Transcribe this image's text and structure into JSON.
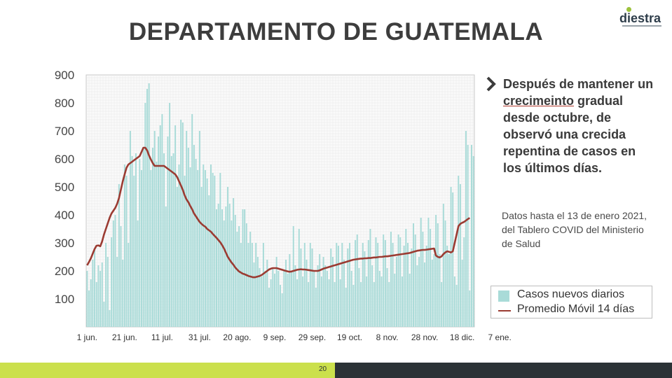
{
  "title": "DEPARTAMENTO DE GUATEMALA",
  "logo": {
    "text": "diestra"
  },
  "bullet": {
    "pre": "Después de mantener un ",
    "underlined": "crecimeinto",
    "post": " gradual desde octubre, de observó una crecida repentina de casos en los últimos días."
  },
  "note": "Datos hasta el 13 de enero 2021, del Tablero COVID del Ministerio de Salud",
  "legend": {
    "bars": "Casos nuevos diarios",
    "line": "Promedio Móvil 14 días"
  },
  "page_number": "20",
  "colors": {
    "bars": "#a9dbd8",
    "line": "#9b3b32",
    "accent_band": "#cbe04c",
    "dark_band": "#2b3236"
  },
  "chart_data": {
    "type": "bar",
    "ylim": [
      0,
      900
    ],
    "yticks": [
      100,
      200,
      300,
      400,
      500,
      600,
      700,
      800,
      900
    ],
    "xticks": [
      "1 jun.",
      "21 jun.",
      "11 jul.",
      "31 jul.",
      "20 ago.",
      "9 sep.",
      "29 sep.",
      "19 oct.",
      "8 nov.",
      "28 nov.",
      "18 dic.",
      "7 ene."
    ],
    "grid": true,
    "legend_position": "right",
    "start_date": "2020-06-01",
    "series": [
      {
        "name": "Casos nuevos diarios",
        "type": "bar",
        "values": [
          200,
          130,
          170,
          240,
          280,
          160,
          220,
          200,
          230,
          90,
          300,
          250,
          60,
          320,
          380,
          400,
          250,
          510,
          360,
          240,
          580,
          540,
          300,
          700,
          610,
          540,
          620,
          380,
          600,
          560,
          640,
          800,
          850,
          870,
          560,
          640,
          700,
          590,
          680,
          720,
          760,
          620,
          430,
          680,
          800,
          610,
          620,
          720,
          500,
          580,
          740,
          730,
          540,
          700,
          640,
          570,
          760,
          650,
          600,
          560,
          700,
          500,
          580,
          560,
          530,
          470,
          580,
          550,
          540,
          420,
          440,
          550,
          420,
          380,
          430,
          500,
          440,
          380,
          460,
          400,
          340,
          360,
          300,
          420,
          420,
          370,
          300,
          340,
          300,
          230,
          300,
          250,
          210,
          180,
          300,
          200,
          240,
          140,
          170,
          210,
          190,
          250,
          200,
          150,
          120,
          200,
          240,
          190,
          260,
          200,
          360,
          220,
          170,
          350,
          280,
          180,
          300,
          240,
          160,
          300,
          280,
          200,
          140,
          220,
          260,
          180,
          250,
          220,
          200,
          170,
          280,
          250,
          160,
          300,
          290,
          170,
          300,
          240,
          140,
          280,
          300,
          200,
          150,
          310,
          330,
          210,
          160,
          300,
          270,
          180,
          310,
          350,
          220,
          160,
          320,
          300,
          200,
          180,
          330,
          310,
          210,
          160,
          340,
          300,
          190,
          250,
          330,
          320,
          180,
          290,
          350,
          300,
          190,
          280,
          370,
          330,
          220,
          250,
          390,
          340,
          230,
          290,
          390,
          350,
          240,
          260,
          400,
          370,
          260,
          160,
          440,
          380,
          290,
          260,
          500,
          480,
          180,
          150,
          540,
          510,
          240,
          320,
          700,
          650,
          130,
          650,
          610
        ]
      },
      {
        "name": "Promedio Móvil 14 días",
        "type": "line",
        "values": [
          220,
          232,
          245,
          262,
          278,
          290,
          291,
          288,
          305,
          330,
          350,
          370,
          390,
          405,
          415,
          425,
          440,
          460,
          490,
          520,
          545,
          568,
          580,
          585,
          590,
          595,
          600,
          605,
          610,
          625,
          640,
          640,
          630,
          612,
          598,
          585,
          575,
          575,
          575,
          575,
          575,
          575,
          570,
          565,
          560,
          555,
          550,
          545,
          535,
          520,
          505,
          490,
          470,
          455,
          445,
          432,
          420,
          405,
          395,
          385,
          375,
          368,
          362,
          358,
          350,
          345,
          340,
          332,
          325,
          318,
          310,
          302,
          292,
          280,
          265,
          250,
          240,
          230,
          222,
          212,
          205,
          198,
          194,
          190,
          188,
          185,
          182,
          180,
          178,
          177,
          178,
          180,
          182,
          185,
          190,
          195,
          200,
          205,
          208,
          210,
          210,
          210,
          208,
          206,
          204,
          202,
          200,
          198,
          197,
          198,
          200,
          202,
          204,
          205,
          206,
          205,
          205,
          204,
          203,
          202,
          201,
          200,
          200,
          200,
          202,
          205,
          208,
          210,
          212,
          214,
          216,
          218,
          220,
          222,
          224,
          226,
          228,
          230,
          232,
          234,
          236,
          238,
          240,
          241,
          242,
          243,
          244,
          244,
          245,
          245,
          246,
          246,
          247,
          248,
          248,
          249,
          250,
          250,
          251,
          252,
          252,
          253,
          254,
          255,
          256,
          257,
          258,
          259,
          260,
          261,
          262,
          263,
          264,
          266,
          268,
          270,
          272,
          273,
          274,
          275,
          275,
          276,
          277,
          278,
          279,
          280,
          255,
          250,
          248,
          252,
          260,
          266,
          270,
          268,
          266,
          270,
          300,
          330,
          360,
          368,
          372,
          375,
          380,
          385,
          389
        ]
      }
    ]
  }
}
